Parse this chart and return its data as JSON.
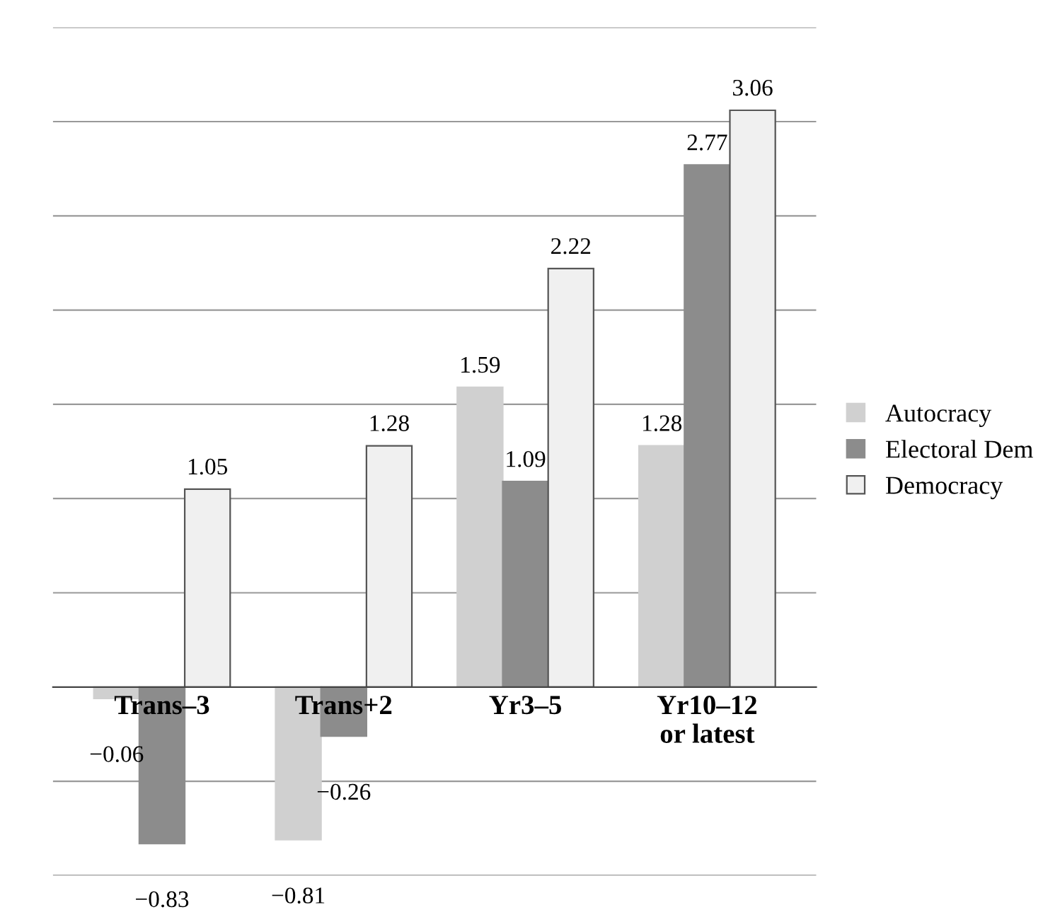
{
  "chart_data": {
    "type": "bar",
    "categories": [
      "Trans–3",
      "Trans+2",
      "Yr3–5",
      "Yr10–12\nor latest"
    ],
    "series": [
      {
        "name": "Autocracy",
        "color": "#d0d0d0",
        "values": [
          -0.06,
          -0.81,
          1.59,
          1.28
        ]
      },
      {
        "name": "Electoral Dem",
        "color": "#8c8c8c",
        "values": [
          -0.83,
          -0.26,
          1.09,
          2.77
        ]
      },
      {
        "name": "Democracy",
        "color": "#f0f0f0",
        "values": [
          1.05,
          1.28,
          2.22,
          3.06
        ]
      }
    ],
    "ylim": [
      -1.0,
      3.5
    ],
    "yticks": [
      {
        "value": -1.0,
        "label": null
      },
      {
        "value": -0.5,
        "label": null
      },
      {
        "value": 0.5,
        "label": null
      },
      {
        "value": 1.0,
        "label": null
      },
      {
        "value": 1.5,
        "label": null
      },
      {
        "value": 2.0,
        "label": null
      },
      {
        "value": 2.5,
        "label": null
      },
      {
        "value": 3.0,
        "label": null
      },
      {
        "value": 3.5,
        "label": null
      }
    ],
    "grid": "y",
    "legend": "right",
    "data_labels": true,
    "tick_labels": "x"
  }
}
